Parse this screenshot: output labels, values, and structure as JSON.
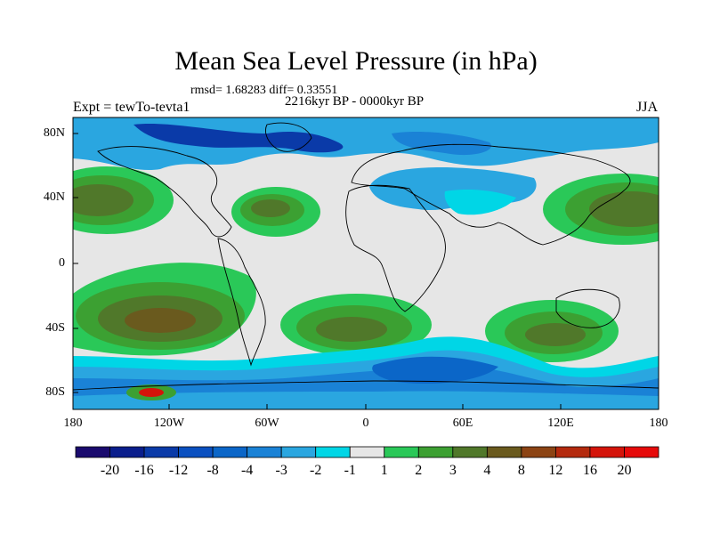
{
  "title": "Mean Sea Level Pressure (in hPa)",
  "stats": "rmsd= 1.68283 diff= 0.33551",
  "period": "2216kyr BP - 0000kyr BP",
  "experiment": "Expt = tewTo-tevta1",
  "season": "JJA",
  "lat_labels": [
    "80N",
    "40N",
    "0",
    "40S",
    "80S"
  ],
  "lon_labels": [
    "180",
    "120W",
    "60W",
    "0",
    "60E",
    "120E",
    "180"
  ],
  "colorbar": {
    "labels": [
      "-20",
      "-16",
      "-12",
      "-8",
      "-4",
      "-3",
      "-2",
      "-1",
      "1",
      "2",
      "3",
      "4",
      "8",
      "12",
      "16",
      "20"
    ],
    "colors": [
      "#1a0a6e",
      "#0a1e8c",
      "#0a3aa8",
      "#0a50c0",
      "#0b66c8",
      "#1a82d6",
      "#2aa6e0",
      "#00d6e6",
      "#e6e6e6",
      "#2ac858",
      "#3ca032",
      "#50782a",
      "#6a5a1e",
      "#8c4414",
      "#b42a0e",
      "#d4140a",
      "#e60a0a"
    ]
  },
  "colors": {
    "land_line": "#000000",
    "neutral": "#e6e6e6"
  }
}
